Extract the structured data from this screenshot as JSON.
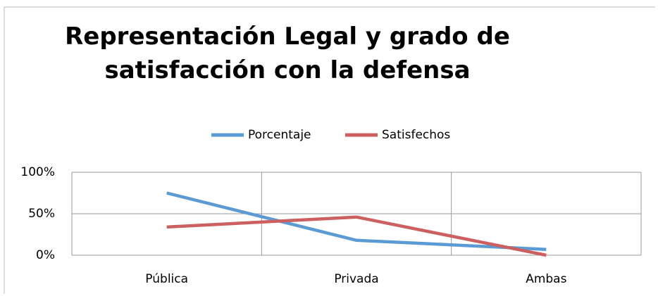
{
  "chart_data": {
    "type": "line",
    "title": "Representación Legal y grado de satisfacción con la defensa",
    "categories": [
      "Pública",
      "Privada",
      "Ambas"
    ],
    "series": [
      {
        "name": "Porcentaje",
        "color": "#5b9bd5",
        "values": [
          75,
          18,
          7
        ]
      },
      {
        "name": "Satisfechos",
        "color": "#cc5f5f",
        "values": [
          34,
          46,
          0
        ]
      }
    ],
    "ylim": [
      0,
      100
    ],
    "yticks": [
      {
        "value": 0,
        "label": "0%"
      },
      {
        "value": 50,
        "label": "50%"
      },
      {
        "value": 100,
        "label": "100%"
      }
    ],
    "grid": true,
    "legend": "top"
  }
}
